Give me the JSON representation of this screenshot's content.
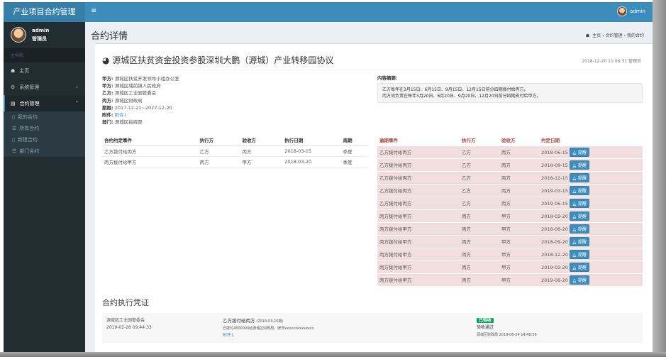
{
  "app_title": "产业项目合约管理",
  "topbar": {
    "menu_icon": "bars-icon",
    "user": "admin"
  },
  "user_panel": {
    "name": "admin",
    "role": "管理员"
  },
  "sidebar": {
    "header": "主导航",
    "items": [
      {
        "label": "主页",
        "icon": "dashboard-icon"
      },
      {
        "label": "系统管理",
        "icon": "gear-icon"
      },
      {
        "label": "合约管理",
        "icon": "file-icon"
      }
    ],
    "sub_items": [
      {
        "label": "我的合约",
        "icon": "file-o-icon"
      },
      {
        "label": "所有合约",
        "icon": "list-icon"
      },
      {
        "label": "新建合约",
        "icon": "file-o-icon"
      },
      {
        "label": "部门合约",
        "icon": "list-icon"
      }
    ]
  },
  "page": {
    "title": "合约详情",
    "breadcrumb": [
      "主页",
      "合约管理",
      "我的合约"
    ]
  },
  "contract": {
    "title": "源城区扶贫资金投资参股深圳大鹏（源城）产业转移园协议",
    "meta": "2018-12-20 11:06:31 管理员",
    "fields": [
      {
        "label": "甲方:",
        "value": "源城区扶贫开发领导小组办公室"
      },
      {
        "label": "甲方:",
        "value": "源城区埔前镇人民政府"
      },
      {
        "label": "乙方:",
        "value": "源城区工业园管委会"
      },
      {
        "label": "丙方:",
        "value": "源城区财政局"
      },
      {
        "label": "期限:",
        "value": "2017-12-21~2027-12-20"
      },
      {
        "label": "附件:",
        "value": "附件1"
      },
      {
        "label": "部门:",
        "value": "源城区指挥部"
      }
    ],
    "summary_label": "内容摘要:",
    "summary": [
      "乙方每年在3月15日、6月15日、9月15日、12月15日前分四期拨付给丙方。",
      "丙方须负责在每年3月20日、6月20日、9月20日、12月20日前分四期支付给甲方。"
    ]
  },
  "events": {
    "headers": [
      "合约约定事件",
      "执行方",
      "验收方",
      "执行日期",
      "周期"
    ],
    "rows": [
      [
        "乙方拨付给丙方",
        "乙方",
        "丙方",
        "2018-03-15",
        "季度"
      ],
      [
        "丙方拨付给甲方",
        "丙方",
        "甲方",
        "2018-03-20",
        "季度"
      ]
    ]
  },
  "overdue": {
    "headers": [
      "逾期事件",
      "执行方",
      "验收方",
      "约定日期"
    ],
    "remind_label": "提醒",
    "rows": [
      [
        "乙方拨付给丙方",
        "乙方",
        "丙方",
        "2018-06-15"
      ],
      [
        "乙方拨付给丙方",
        "乙方",
        "丙方",
        "2018-09-15"
      ],
      [
        "乙方拨付给丙方",
        "乙方",
        "丙方",
        "2018-12-15"
      ],
      [
        "乙方拨付给丙方",
        "乙方",
        "丙方",
        "2019-03-15"
      ],
      [
        "乙方拨付给丙方",
        "乙方",
        "丙方",
        "2019-06-15"
      ],
      [
        "丙方拨付给甲方",
        "丙方",
        "甲方",
        "2018-03-20"
      ],
      [
        "丙方拨付给甲方",
        "丙方",
        "甲方",
        "2018-06-20"
      ],
      [
        "丙方拨付给甲方",
        "丙方",
        "甲方",
        "2018-09-20"
      ],
      [
        "丙方拨付给甲方",
        "丙方",
        "甲方",
        "2018-12-20"
      ],
      [
        "丙方拨付给甲方",
        "丙方",
        "甲方",
        "2019-03-20"
      ],
      [
        "丙方拨付给甲方",
        "丙方",
        "甲方",
        "2019-06-20"
      ]
    ]
  },
  "vouchers": {
    "title": "合约执行凭证",
    "items": [
      {
        "org": "源城区工业园管委会",
        "time": "2019-02-28 09:44:33",
        "event": "乙方拨付给丙方",
        "period": "(2018-03-15期)",
        "desc": "已拨付4800000给源城区财政局，账号xxxxxxxxxxxxxx",
        "attachment": "附件1",
        "status": "已验收",
        "result": "验收通过",
        "checker": "源城区财政局 2019-06-24 14:48:56"
      }
    ]
  }
}
